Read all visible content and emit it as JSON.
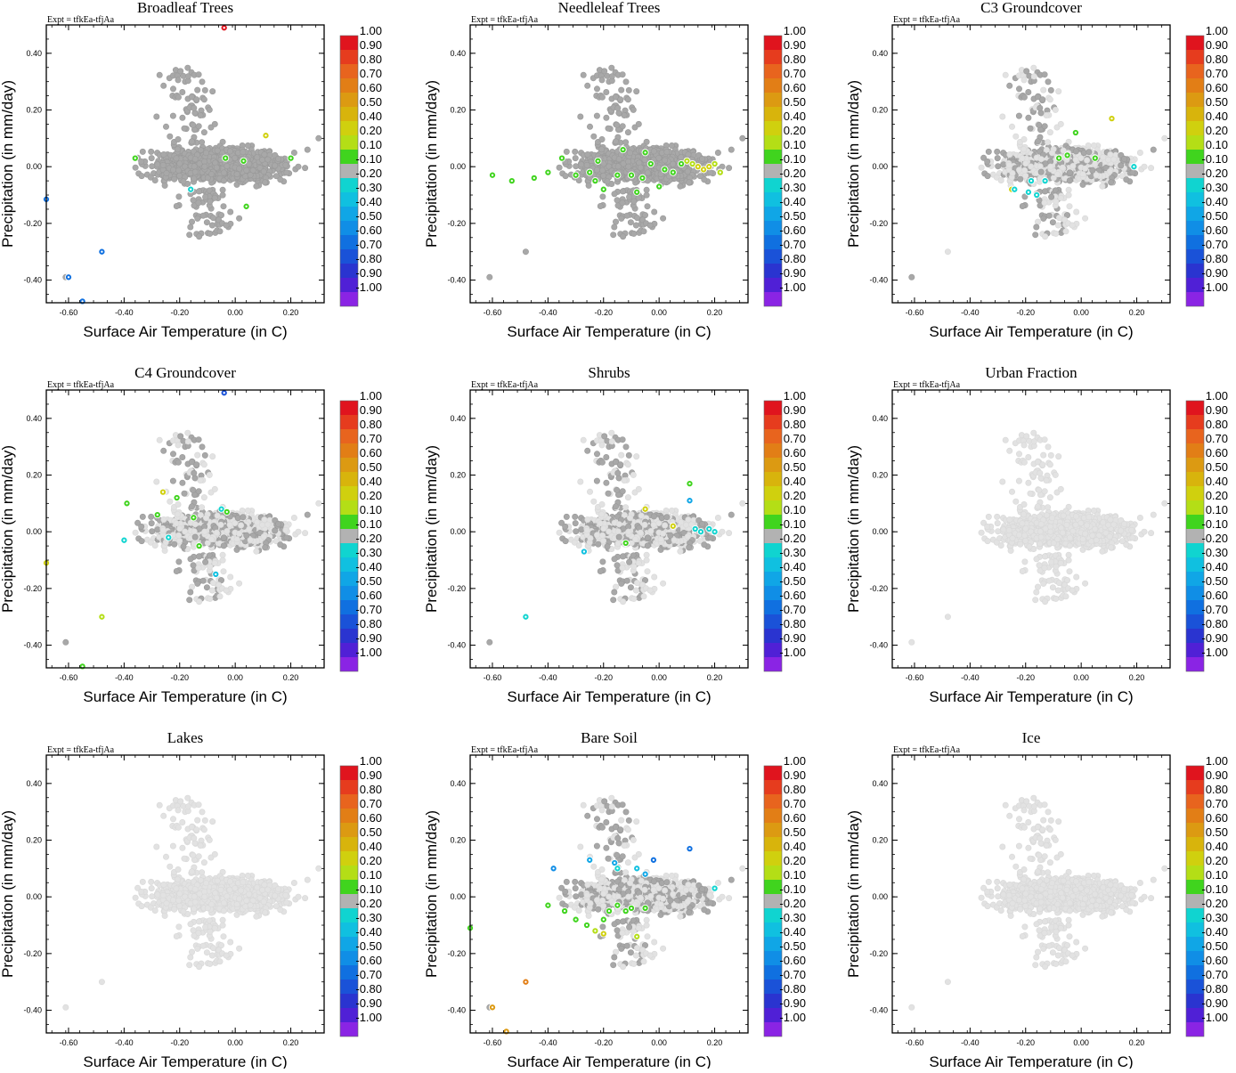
{
  "figure": {
    "expt_label": "Expt = tfkEa-tfjAa",
    "xlabel": "Surface Air Temperature (in C)",
    "ylabel": "Precipitation (in mm/day)",
    "colorbar_labels": [
      "1.00",
      "0.90",
      "0.80",
      "0.70",
      "0.60",
      "0.50",
      "0.40",
      "0.20",
      "0.10",
      "-0.10",
      "-0.20",
      "-0.30",
      "-0.40",
      "-0.50",
      "-0.60",
      "-0.70",
      "-0.80",
      "-0.90",
      "-1.00"
    ],
    "colorbar_colors": [
      "#e0141e",
      "#e63c1e",
      "#e8641e",
      "#e27e16",
      "#dc9a12",
      "#d8b40c",
      "#d0d00e",
      "#b4de16",
      "#40d41e",
      "#b2b2b2",
      "#10d4d0",
      "#10c0e0",
      "#10a6e6",
      "#108ee6",
      "#1070e0",
      "#1a52d8",
      "#2a34d0",
      "#5020d6",
      "#8a24e4"
    ],
    "background_color": "#e2e2e2",
    "midgray_color": "#a8a8a8"
  },
  "chart_data": [
    {
      "type": "scatter",
      "title": "Broadleaf Trees",
      "xlim": [
        -0.68,
        0.32
      ],
      "ylim": [
        -0.48,
        0.5
      ],
      "xticks": [
        "-0.60",
        "-0.40",
        "-0.20",
        "0.00",
        "0.20"
      ],
      "yticks": [
        "-0.40",
        "-0.20",
        "0.00",
        "0.20",
        "0.40"
      ],
      "density": 1.0,
      "highlights": [
        {
          "x": -0.04,
          "y": 0.49,
          "c": -1
        },
        {
          "x": -0.68,
          "y": -0.115,
          "c": 14
        },
        {
          "x": -0.6,
          "y": -0.39,
          "c": 14
        },
        {
          "x": -0.55,
          "y": -0.475,
          "c": 14
        },
        {
          "x": -0.48,
          "y": -0.3,
          "c": 14
        },
        {
          "x": -0.035,
          "y": 0.03,
          "c": 8
        },
        {
          "x": 0.03,
          "y": 0.02,
          "c": 8
        },
        {
          "x": 0.11,
          "y": 0.11,
          "c": 6
        },
        {
          "x": 0.2,
          "y": 0.03,
          "c": 8
        },
        {
          "x": 0.04,
          "y": -0.14,
          "c": 8
        },
        {
          "x": -0.36,
          "y": 0.03,
          "c": 8
        },
        {
          "x": -0.16,
          "y": -0.08,
          "c": 10
        }
      ]
    },
    {
      "type": "scatter",
      "title": "Needleleaf Trees",
      "xlim": [
        -0.68,
        0.32
      ],
      "ylim": [
        -0.48,
        0.5
      ],
      "xticks": [
        "-0.60",
        "-0.40",
        "-0.20",
        "0.00",
        "0.20"
      ],
      "yticks": [
        "-0.40",
        "-0.20",
        "0.00",
        "0.20",
        "0.40"
      ],
      "density": 1.0,
      "highlights": [
        {
          "x": -0.6,
          "y": -0.03,
          "c": 8
        },
        {
          "x": -0.53,
          "y": -0.05,
          "c": 8
        },
        {
          "x": -0.4,
          "y": -0.02,
          "c": 8
        },
        {
          "x": -0.35,
          "y": 0.03,
          "c": 8
        },
        {
          "x": -0.3,
          "y": -0.03,
          "c": 8
        },
        {
          "x": -0.25,
          "y": -0.02,
          "c": 8
        },
        {
          "x": -0.22,
          "y": 0.02,
          "c": 8
        },
        {
          "x": -0.2,
          "y": -0.08,
          "c": 8
        },
        {
          "x": -0.13,
          "y": 0.06,
          "c": 8
        },
        {
          "x": -0.1,
          "y": -0.03,
          "c": 8
        },
        {
          "x": -0.06,
          "y": -0.04,
          "c": 8
        },
        {
          "x": -0.03,
          "y": 0.01,
          "c": 8
        },
        {
          "x": 0.02,
          "y": -0.01,
          "c": 8
        },
        {
          "x": 0.05,
          "y": -0.02,
          "c": 8
        },
        {
          "x": 0.08,
          "y": 0.01,
          "c": 8
        },
        {
          "x": 0.1,
          "y": 0.02,
          "c": 7
        },
        {
          "x": 0.12,
          "y": 0.01,
          "c": 7
        },
        {
          "x": 0.14,
          "y": 0.0,
          "c": 6
        },
        {
          "x": 0.16,
          "y": -0.01,
          "c": 6
        },
        {
          "x": 0.18,
          "y": 0.0,
          "c": 6
        },
        {
          "x": 0.22,
          "y": -0.02,
          "c": 7
        },
        {
          "x": -0.15,
          "y": -0.03,
          "c": 8
        },
        {
          "x": -0.05,
          "y": 0.05,
          "c": 8
        },
        {
          "x": -0.23,
          "y": -0.05,
          "c": 8
        },
        {
          "x": 0.0,
          "y": -0.07,
          "c": 8
        },
        {
          "x": 0.2,
          "y": 0.01,
          "c": 7
        },
        {
          "x": -0.08,
          "y": -0.09,
          "c": 8
        },
        {
          "x": -0.45,
          "y": -0.04,
          "c": 8
        }
      ]
    },
    {
      "type": "scatter",
      "title": "C3 Groundcover",
      "xlim": [
        -0.68,
        0.32
      ],
      "ylim": [
        -0.48,
        0.5
      ],
      "xticks": [
        "-0.60",
        "-0.40",
        "-0.20",
        "0.00",
        "0.20"
      ],
      "yticks": [
        "-0.40",
        "-0.20",
        "0.00",
        "0.20",
        "0.40"
      ],
      "density": 0.42,
      "highlights": [
        {
          "x": -0.02,
          "y": 0.12,
          "c": 8
        },
        {
          "x": 0.11,
          "y": 0.17,
          "c": 6
        },
        {
          "x": 0.05,
          "y": 0.03,
          "c": 8
        },
        {
          "x": -0.08,
          "y": 0.03,
          "c": 8
        },
        {
          "x": -0.05,
          "y": 0.04,
          "c": 8
        },
        {
          "x": -0.25,
          "y": -0.08,
          "c": 6
        },
        {
          "x": -0.24,
          "y": -0.08,
          "c": 10
        },
        {
          "x": -0.19,
          "y": -0.09,
          "c": 10
        },
        {
          "x": -0.18,
          "y": -0.05,
          "c": 10
        },
        {
          "x": -0.16,
          "y": -0.1,
          "c": 10
        },
        {
          "x": -0.13,
          "y": -0.05,
          "c": 10
        },
        {
          "x": 0.19,
          "y": 0.0,
          "c": 10
        }
      ]
    },
    {
      "type": "scatter",
      "title": "C4 Groundcover",
      "xlim": [
        -0.68,
        0.32
      ],
      "ylim": [
        -0.48,
        0.5
      ],
      "xticks": [
        "-0.60",
        "-0.40",
        "-0.20",
        "0.00",
        "0.20"
      ],
      "yticks": [
        "-0.40",
        "-0.20",
        "0.00",
        "0.20",
        "0.40"
      ],
      "density": 0.42,
      "highlights": [
        {
          "x": -0.04,
          "y": 0.49,
          "c": 15
        },
        {
          "x": -0.68,
          "y": -0.11,
          "c": 6
        },
        {
          "x": -0.48,
          "y": -0.3,
          "c": 7
        },
        {
          "x": -0.55,
          "y": -0.475,
          "c": 8
        },
        {
          "x": -0.39,
          "y": 0.1,
          "c": 8
        },
        {
          "x": -0.26,
          "y": 0.14,
          "c": 6
        },
        {
          "x": -0.28,
          "y": 0.06,
          "c": 8
        },
        {
          "x": -0.15,
          "y": 0.05,
          "c": 8
        },
        {
          "x": -0.13,
          "y": -0.05,
          "c": 8
        },
        {
          "x": -0.05,
          "y": 0.08,
          "c": 10
        },
        {
          "x": -0.03,
          "y": 0.07,
          "c": 8
        },
        {
          "x": -0.4,
          "y": -0.03,
          "c": 10
        },
        {
          "x": -0.24,
          "y": -0.02,
          "c": 10
        },
        {
          "x": -0.07,
          "y": -0.15,
          "c": 11
        },
        {
          "x": -0.21,
          "y": 0.12,
          "c": 8
        }
      ]
    },
    {
      "type": "scatter",
      "title": "Shrubs",
      "xlim": [
        -0.68,
        0.32
      ],
      "ylim": [
        -0.48,
        0.5
      ],
      "xticks": [
        "-0.60",
        "-0.40",
        "-0.20",
        "0.00",
        "0.20"
      ],
      "yticks": [
        "-0.40",
        "-0.20",
        "0.00",
        "0.20",
        "0.40"
      ],
      "density": 0.42,
      "highlights": [
        {
          "x": -0.48,
          "y": -0.3,
          "c": 10
        },
        {
          "x": -0.27,
          "y": -0.07,
          "c": 11
        },
        {
          "x": -0.12,
          "y": -0.04,
          "c": 8
        },
        {
          "x": -0.05,
          "y": 0.08,
          "c": 6
        },
        {
          "x": 0.05,
          "y": 0.02,
          "c": 6
        },
        {
          "x": 0.11,
          "y": 0.17,
          "c": 8
        },
        {
          "x": 0.11,
          "y": 0.11,
          "c": 12
        },
        {
          "x": 0.13,
          "y": 0.01,
          "c": 10
        },
        {
          "x": 0.15,
          "y": 0.0,
          "c": 10
        },
        {
          "x": 0.18,
          "y": 0.01,
          "c": 10
        },
        {
          "x": 0.2,
          "y": 0.0,
          "c": 10
        }
      ]
    },
    {
      "type": "scatter",
      "title": "Urban Fraction",
      "xlim": [
        -0.68,
        0.32
      ],
      "ylim": [
        -0.48,
        0.5
      ],
      "xticks": [
        "-0.60",
        "-0.40",
        "-0.20",
        "0.00",
        "0.20"
      ],
      "yticks": [
        "-0.40",
        "-0.20",
        "0.00",
        "0.20",
        "0.40"
      ],
      "density": 0.0,
      "highlights": []
    },
    {
      "type": "scatter",
      "title": "Lakes",
      "xlim": [
        -0.68,
        0.32
      ],
      "ylim": [
        -0.48,
        0.5
      ],
      "xticks": [
        "-0.60",
        "-0.40",
        "-0.20",
        "0.00",
        "0.20"
      ],
      "yticks": [
        "-0.40",
        "-0.20",
        "0.00",
        "0.20",
        "0.40"
      ],
      "density": 0.0,
      "highlights": []
    },
    {
      "type": "scatter",
      "title": "Bare Soil",
      "xlim": [
        -0.68,
        0.32
      ],
      "ylim": [
        -0.48,
        0.5
      ],
      "xticks": [
        "-0.60",
        "-0.40",
        "-0.20",
        "0.00",
        "0.20"
      ],
      "yticks": [
        "-0.40",
        "-0.20",
        "0.00",
        "0.20",
        "0.40"
      ],
      "density": 0.45,
      "highlights": [
        {
          "x": -0.6,
          "y": -0.39,
          "c": 4
        },
        {
          "x": -0.48,
          "y": -0.3,
          "c": 3
        },
        {
          "x": -0.55,
          "y": -0.475,
          "c": 4
        },
        {
          "x": -0.68,
          "y": -0.11,
          "c": 8
        },
        {
          "x": -0.4,
          "y": -0.03,
          "c": 8
        },
        {
          "x": -0.34,
          "y": -0.05,
          "c": 8
        },
        {
          "x": -0.3,
          "y": -0.08,
          "c": 8
        },
        {
          "x": -0.26,
          "y": -0.1,
          "c": 8
        },
        {
          "x": -0.23,
          "y": -0.12,
          "c": 7
        },
        {
          "x": -0.2,
          "y": -0.08,
          "c": 8
        },
        {
          "x": -0.18,
          "y": -0.05,
          "c": 8
        },
        {
          "x": -0.15,
          "y": -0.03,
          "c": 8
        },
        {
          "x": -0.12,
          "y": -0.05,
          "c": 8
        },
        {
          "x": -0.1,
          "y": -0.04,
          "c": 8
        },
        {
          "x": -0.08,
          "y": -0.14,
          "c": 7
        },
        {
          "x": -0.05,
          "y": -0.04,
          "c": 8
        },
        {
          "x": -0.25,
          "y": 0.13,
          "c": 12
        },
        {
          "x": -0.16,
          "y": 0.12,
          "c": 12
        },
        {
          "x": -0.15,
          "y": 0.1,
          "c": 10
        },
        {
          "x": -0.08,
          "y": 0.1,
          "c": 11
        },
        {
          "x": -0.02,
          "y": 0.13,
          "c": 14
        },
        {
          "x": 0.11,
          "y": 0.17,
          "c": 14
        },
        {
          "x": -0.05,
          "y": 0.08,
          "c": 12
        },
        {
          "x": 0.2,
          "y": 0.03,
          "c": 10
        },
        {
          "x": -0.38,
          "y": 0.1,
          "c": 13
        },
        {
          "x": -0.2,
          "y": -0.13,
          "c": 6
        }
      ]
    },
    {
      "type": "scatter",
      "title": "Ice",
      "xlim": [
        -0.68,
        0.32
      ],
      "ylim": [
        -0.48,
        0.5
      ],
      "xticks": [
        "-0.60",
        "-0.40",
        "-0.20",
        "0.00",
        "0.20"
      ],
      "yticks": [
        "-0.40",
        "-0.20",
        "0.00",
        "0.20",
        "0.40"
      ],
      "density": 0.0,
      "highlights": []
    }
  ]
}
